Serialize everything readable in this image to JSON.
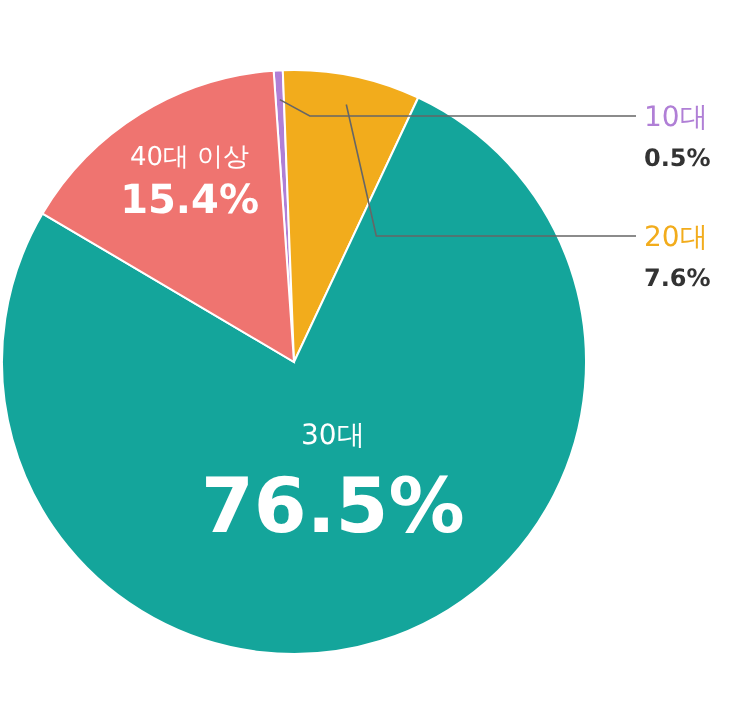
{
  "chart_data": {
    "type": "pie",
    "categories": [
      "10대",
      "20대",
      "30대",
      "40대 이상"
    ],
    "values": [
      0.5,
      7.6,
      76.5,
      15.4
    ],
    "colors": [
      "#b07fd6",
      "#f2ac1c",
      "#14a59b",
      "#ef7470"
    ],
    "value_labels": [
      "0.5%",
      "7.6%",
      "76.5%",
      "15.4%"
    ]
  }
}
